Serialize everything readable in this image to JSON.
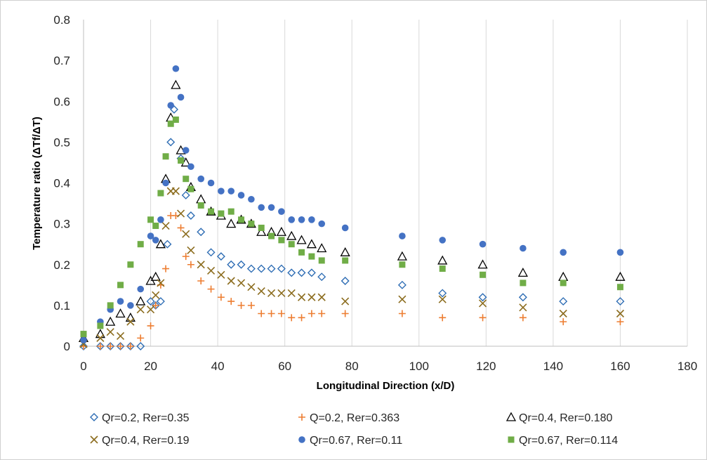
{
  "chart_data": {
    "type": "scatter",
    "title": "",
    "xlabel": "Longitudinal Direction (x/D)",
    "ylabel": "Temperature ratio (ΔTf/ΔT)",
    "xlim": [
      0,
      180
    ],
    "ylim": [
      0,
      0.8
    ],
    "xticks": [
      0,
      20,
      40,
      60,
      80,
      100,
      120,
      140,
      160,
      180
    ],
    "yticks": [
      0,
      0.1,
      0.2,
      0.3,
      0.4,
      0.5,
      0.6,
      0.7,
      0.8
    ],
    "xtick_labels": [
      "0",
      "20",
      "40",
      "60",
      "80",
      "100",
      "120",
      "140",
      "160",
      "180"
    ],
    "ytick_labels": [
      "0",
      "0.1",
      "0.2",
      "0.3",
      "0.4",
      "0.5",
      "0.6",
      "0.7",
      "0.8"
    ],
    "grid": "vertical",
    "legend_position": "bottom",
    "series": [
      {
        "name": "Qr=0.2, Rer=0.35",
        "marker": "diamond-open",
        "color": "#2e6db4",
        "points": [
          [
            0,
            0
          ],
          [
            5,
            0
          ],
          [
            8,
            0
          ],
          [
            11,
            0
          ],
          [
            14,
            0
          ],
          [
            17,
            0
          ],
          [
            20,
            0.11
          ],
          [
            21.5,
            0.1
          ],
          [
            23,
            0.11
          ],
          [
            25,
            0.25
          ],
          [
            26,
            0.5
          ],
          [
            27,
            0.58
          ],
          [
            29,
            0.46
          ],
          [
            30.5,
            0.37
          ],
          [
            32,
            0.32
          ],
          [
            35,
            0.28
          ],
          [
            38,
            0.23
          ],
          [
            41,
            0.22
          ],
          [
            44,
            0.2
          ],
          [
            47,
            0.2
          ],
          [
            50,
            0.19
          ],
          [
            53,
            0.19
          ],
          [
            56,
            0.19
          ],
          [
            59,
            0.19
          ],
          [
            62,
            0.18
          ],
          [
            65,
            0.18
          ],
          [
            68,
            0.18
          ],
          [
            71,
            0.17
          ],
          [
            78,
            0.16
          ],
          [
            95,
            0.15
          ],
          [
            107,
            0.13
          ],
          [
            119,
            0.12
          ],
          [
            131,
            0.12
          ],
          [
            143,
            0.11
          ],
          [
            160,
            0.11
          ]
        ]
      },
      {
        "name": "Q=0.2, Rer=0.363",
        "marker": "plus",
        "color": "#ed7d31",
        "points": [
          [
            0,
            0
          ],
          [
            5,
            0
          ],
          [
            8,
            0
          ],
          [
            11,
            0
          ],
          [
            14,
            0
          ],
          [
            17,
            0.02
          ],
          [
            20,
            0.05
          ],
          [
            21.5,
            0.1
          ],
          [
            23,
            0.15
          ],
          [
            24.5,
            0.19
          ],
          [
            26,
            0.32
          ],
          [
            27.5,
            0.32
          ],
          [
            29,
            0.29
          ],
          [
            30.5,
            0.22
          ],
          [
            32,
            0.2
          ],
          [
            35,
            0.16
          ],
          [
            38,
            0.14
          ],
          [
            41,
            0.12
          ],
          [
            44,
            0.11
          ],
          [
            47,
            0.1
          ],
          [
            50,
            0.1
          ],
          [
            53,
            0.08
          ],
          [
            56,
            0.08
          ],
          [
            59,
            0.08
          ],
          [
            62,
            0.07
          ],
          [
            65,
            0.07
          ],
          [
            68,
            0.08
          ],
          [
            71,
            0.08
          ],
          [
            78,
            0.08
          ],
          [
            95,
            0.08
          ],
          [
            107,
            0.07
          ],
          [
            119,
            0.07
          ],
          [
            131,
            0.07
          ],
          [
            143,
            0.06
          ],
          [
            160,
            0.06
          ]
        ]
      },
      {
        "name": "Qr=0.4, Rer=0.180",
        "marker": "triangle-open",
        "color": "#000000",
        "points": [
          [
            0,
            0.02
          ],
          [
            5,
            0.03
          ],
          [
            8,
            0.06
          ],
          [
            11,
            0.08
          ],
          [
            14,
            0.07
          ],
          [
            17,
            0.11
          ],
          [
            20,
            0.16
          ],
          [
            21.5,
            0.17
          ],
          [
            23,
            0.25
          ],
          [
            24.5,
            0.41
          ],
          [
            26,
            0.56
          ],
          [
            27.5,
            0.64
          ],
          [
            29,
            0.48
          ],
          [
            30.5,
            0.45
          ],
          [
            32,
            0.39
          ],
          [
            35,
            0.36
          ],
          [
            38,
            0.33
          ],
          [
            41,
            0.32
          ],
          [
            44,
            0.3
          ],
          [
            47,
            0.31
          ],
          [
            50,
            0.3
          ],
          [
            53,
            0.28
          ],
          [
            56,
            0.28
          ],
          [
            59,
            0.28
          ],
          [
            62,
            0.27
          ],
          [
            65,
            0.26
          ],
          [
            68,
            0.25
          ],
          [
            71,
            0.24
          ],
          [
            78,
            0.23
          ],
          [
            95,
            0.22
          ],
          [
            107,
            0.21
          ],
          [
            119,
            0.2
          ],
          [
            131,
            0.18
          ],
          [
            143,
            0.17
          ],
          [
            160,
            0.17
          ]
        ]
      },
      {
        "name": "Qr=0.4, Rer=0.19",
        "marker": "x",
        "color": "#8c6d1f",
        "points": [
          [
            0,
            0.005
          ],
          [
            5,
            0.02
          ],
          [
            8,
            0.035
          ],
          [
            11,
            0.025
          ],
          [
            14,
            0.06
          ],
          [
            17,
            0.09
          ],
          [
            20,
            0.09
          ],
          [
            21.5,
            0.125
          ],
          [
            23,
            0.155
          ],
          [
            24.5,
            0.295
          ],
          [
            26,
            0.38
          ],
          [
            27.5,
            0.38
          ],
          [
            29,
            0.325
          ],
          [
            30.5,
            0.275
          ],
          [
            32,
            0.235
          ],
          [
            35,
            0.2
          ],
          [
            38,
            0.185
          ],
          [
            41,
            0.175
          ],
          [
            44,
            0.16
          ],
          [
            47,
            0.155
          ],
          [
            50,
            0.145
          ],
          [
            53,
            0.135
          ],
          [
            56,
            0.13
          ],
          [
            59,
            0.13
          ],
          [
            62,
            0.13
          ],
          [
            65,
            0.12
          ],
          [
            68,
            0.12
          ],
          [
            71,
            0.12
          ],
          [
            78,
            0.11
          ],
          [
            95,
            0.115
          ],
          [
            107,
            0.115
          ],
          [
            119,
            0.105
          ],
          [
            131,
            0.095
          ],
          [
            143,
            0.08
          ],
          [
            160,
            0.08
          ]
        ]
      },
      {
        "name": "Qr=0.67, Rer=0.11",
        "marker": "circle",
        "color": "#4472c4",
        "points": [
          [
            0,
            0.015
          ],
          [
            5,
            0.06
          ],
          [
            8,
            0.09
          ],
          [
            11,
            0.11
          ],
          [
            14,
            0.1
          ],
          [
            17,
            0.14
          ],
          [
            20,
            0.27
          ],
          [
            21.5,
            0.26
          ],
          [
            23,
            0.31
          ],
          [
            24.5,
            0.4
          ],
          [
            26,
            0.59
          ],
          [
            27.5,
            0.68
          ],
          [
            29,
            0.61
          ],
          [
            30.5,
            0.48
          ],
          [
            32,
            0.44
          ],
          [
            35,
            0.41
          ],
          [
            38,
            0.4
          ],
          [
            41,
            0.38
          ],
          [
            44,
            0.38
          ],
          [
            47,
            0.37
          ],
          [
            50,
            0.36
          ],
          [
            53,
            0.34
          ],
          [
            56,
            0.34
          ],
          [
            59,
            0.33
          ],
          [
            62,
            0.31
          ],
          [
            65,
            0.31
          ],
          [
            68,
            0.31
          ],
          [
            71,
            0.3
          ],
          [
            78,
            0.29
          ],
          [
            95,
            0.27
          ],
          [
            107,
            0.26
          ],
          [
            119,
            0.25
          ],
          [
            131,
            0.24
          ],
          [
            143,
            0.23
          ],
          [
            160,
            0.23
          ]
        ]
      },
      {
        "name": "Qr=0.67, Rer=0.114",
        "marker": "square",
        "color": "#70ad47",
        "points": [
          [
            0,
            0.03
          ],
          [
            5,
            0.05
          ],
          [
            8,
            0.1
          ],
          [
            11,
            0.15
          ],
          [
            14,
            0.2
          ],
          [
            17,
            0.25
          ],
          [
            20,
            0.31
          ],
          [
            21.5,
            0.295
          ],
          [
            23,
            0.375
          ],
          [
            24.5,
            0.465
          ],
          [
            26,
            0.545
          ],
          [
            27.5,
            0.555
          ],
          [
            29,
            0.455
          ],
          [
            30.5,
            0.41
          ],
          [
            32,
            0.385
          ],
          [
            35,
            0.345
          ],
          [
            38,
            0.33
          ],
          [
            41,
            0.325
          ],
          [
            44,
            0.33
          ],
          [
            47,
            0.31
          ],
          [
            50,
            0.3
          ],
          [
            53,
            0.29
          ],
          [
            56,
            0.27
          ],
          [
            59,
            0.26
          ],
          [
            62,
            0.25
          ],
          [
            65,
            0.23
          ],
          [
            68,
            0.22
          ],
          [
            71,
            0.21
          ],
          [
            78,
            0.21
          ],
          [
            95,
            0.2
          ],
          [
            107,
            0.19
          ],
          [
            119,
            0.175
          ],
          [
            131,
            0.155
          ],
          [
            143,
            0.155
          ],
          [
            160,
            0.145
          ]
        ]
      }
    ]
  }
}
